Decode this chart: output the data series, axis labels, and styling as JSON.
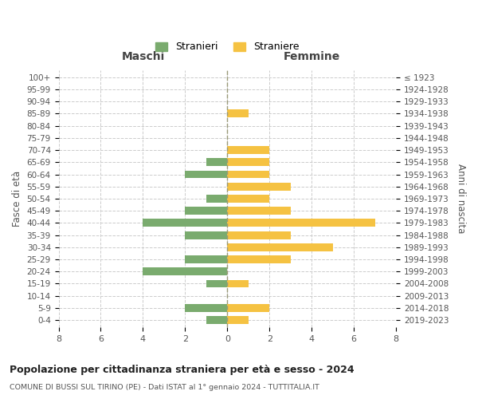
{
  "age_groups": [
    "100+",
    "95-99",
    "90-94",
    "85-89",
    "80-84",
    "75-79",
    "70-74",
    "65-69",
    "60-64",
    "55-59",
    "50-54",
    "45-49",
    "40-44",
    "35-39",
    "30-34",
    "25-29",
    "20-24",
    "15-19",
    "10-14",
    "5-9",
    "0-4"
  ],
  "birth_years": [
    "≤ 1923",
    "1924-1928",
    "1929-1933",
    "1934-1938",
    "1939-1943",
    "1944-1948",
    "1949-1953",
    "1954-1958",
    "1959-1963",
    "1964-1968",
    "1969-1973",
    "1974-1978",
    "1979-1983",
    "1984-1988",
    "1989-1993",
    "1994-1998",
    "1999-2003",
    "2004-2008",
    "2009-2013",
    "2014-2018",
    "2019-2023"
  ],
  "males": [
    0,
    0,
    0,
    0,
    0,
    0,
    0,
    1,
    2,
    0,
    1,
    2,
    4,
    2,
    0,
    2,
    4,
    1,
    0,
    2,
    1
  ],
  "females": [
    0,
    0,
    0,
    1,
    0,
    0,
    2,
    2,
    2,
    3,
    2,
    3,
    7,
    3,
    5,
    3,
    0,
    1,
    0,
    2,
    1
  ],
  "male_color": "#7aab6e",
  "female_color": "#f5c242",
  "title": "Popolazione per cittadinanza straniera per età e sesso - 2024",
  "subtitle": "COMUNE DI BUSSI SUL TIRINO (PE) - Dati ISTAT al 1° gennaio 2024 - TUTTITALIA.IT",
  "xlabel_left": "Maschi",
  "xlabel_right": "Femmine",
  "ylabel_left": "Fasce di età",
  "ylabel_right": "Anni di nascita",
  "legend_male": "Stranieri",
  "legend_female": "Straniere",
  "xlim": 8,
  "background_color": "#ffffff",
  "grid_color": "#cccccc"
}
